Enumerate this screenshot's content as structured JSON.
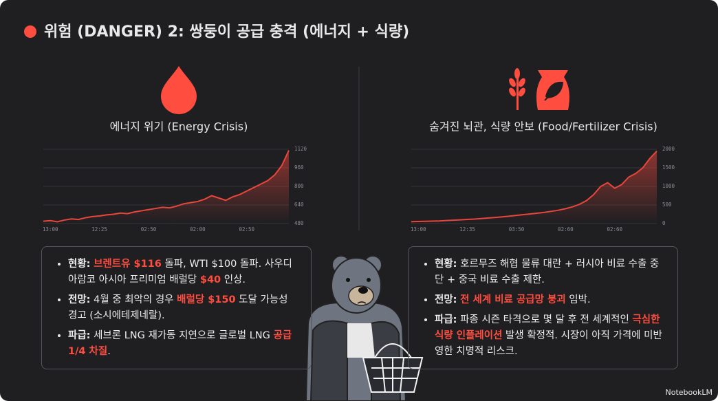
{
  "header": {
    "title": "위험 (DANGER) 2: 쌍둥이 공급 충격 (에너지 + 식량)"
  },
  "chart_data": [
    {
      "type": "line",
      "title": "에너지 위기 (Energy Crisis)",
      "categories": [
        null,
        "13:00",
        null,
        null,
        null,
        null,
        null,
        null,
        "12:25",
        null,
        null,
        null,
        null,
        null,
        null,
        "02:50",
        null,
        null,
        null,
        null,
        null,
        null,
        "02:00",
        null,
        null,
        null,
        null,
        null,
        null,
        "02:50",
        null,
        null,
        null,
        null,
        null,
        null
      ],
      "values": [
        500,
        505,
        495,
        510,
        520,
        515,
        530,
        540,
        545,
        555,
        560,
        570,
        565,
        580,
        590,
        600,
        610,
        620,
        615,
        630,
        650,
        660,
        670,
        690,
        720,
        700,
        680,
        710,
        730,
        760,
        790,
        820,
        850,
        900,
        980,
        1110
      ],
      "color": "#e8463c",
      "ylim": [
        480,
        1120
      ],
      "yticks": [
        480,
        640,
        800,
        960,
        1120
      ],
      "grid": true
    },
    {
      "type": "line",
      "title": "숨겨진 뇌관, 식량 안보 (Food/Fertilizer Crisis)",
      "categories": [
        null,
        "13:00",
        null,
        null,
        null,
        null,
        null,
        null,
        "12:35",
        null,
        null,
        null,
        null,
        null,
        null,
        "03:50",
        null,
        null,
        null,
        null,
        null,
        null,
        "02:60",
        null,
        null,
        null,
        null,
        null,
        null,
        "02:60",
        null,
        null,
        null,
        null,
        null,
        null
      ],
      "values": [
        50,
        55,
        60,
        65,
        70,
        80,
        90,
        100,
        110,
        120,
        135,
        150,
        165,
        180,
        200,
        220,
        240,
        260,
        280,
        300,
        330,
        360,
        400,
        450,
        520,
        620,
        780,
        1000,
        1100,
        950,
        1050,
        1250,
        1350,
        1500,
        1750,
        1950
      ],
      "color": "#e8463c",
      "ylim": [
        0,
        2000
      ],
      "yticks": [
        0,
        500,
        1000,
        1500,
        2000
      ],
      "grid": true
    }
  ],
  "panels": [
    {
      "bullets": [
        [
          {
            "text": "현황:",
            "style": "bold"
          },
          {
            "text": " ",
            "style": "plain"
          },
          {
            "text": "브렌트유 $116",
            "style": "red"
          },
          {
            "text": " 돌파, WTI $100 돌파. 사우디 아람코 아시아 프리미엄 배럴당 ",
            "style": "plain"
          },
          {
            "text": "$40",
            "style": "red"
          },
          {
            "text": " 인상.",
            "style": "plain"
          }
        ],
        [
          {
            "text": "전망:",
            "style": "bold"
          },
          {
            "text": " 4월 중 최악의 경우 ",
            "style": "plain"
          },
          {
            "text": "배럴당 $150",
            "style": "red"
          },
          {
            "text": " 도달 가능성 경고 (소시에테제네랄).",
            "style": "plain"
          }
        ],
        [
          {
            "text": "파급:",
            "style": "bold"
          },
          {
            "text": " 세브론 LNG 재가동 지연으로 글로벌 LNG ",
            "style": "plain"
          },
          {
            "text": "공급 1/4 차질",
            "style": "red"
          },
          {
            "text": ".",
            "style": "plain"
          }
        ]
      ]
    },
    {
      "bullets": [
        [
          {
            "text": "현황:",
            "style": "bold"
          },
          {
            "text": " 호르무즈 해협 물류 대란 + 러시아 비료 수출 중단 + 중국 비료 수출 제한.",
            "style": "plain"
          }
        ],
        [
          {
            "text": "전망:",
            "style": "bold"
          },
          {
            "text": " ",
            "style": "plain"
          },
          {
            "text": "전 세계 비료 공급망 붕괴",
            "style": "red"
          },
          {
            "text": " 임박.",
            "style": "plain"
          }
        ],
        [
          {
            "text": "파급:",
            "style": "bold"
          },
          {
            "text": " 파종 시즌 타격으로 몇 달 후 전 세계적인 ",
            "style": "plain"
          },
          {
            "text": "극심한 식량 인플레이션",
            "style": "red"
          },
          {
            "text": " 발생 확정적. 시장이 아직 가격에 미반영한 치명적 리스크.",
            "style": "plain"
          }
        ]
      ]
    }
  ],
  "footer": {
    "brand": "NotebookLM"
  }
}
